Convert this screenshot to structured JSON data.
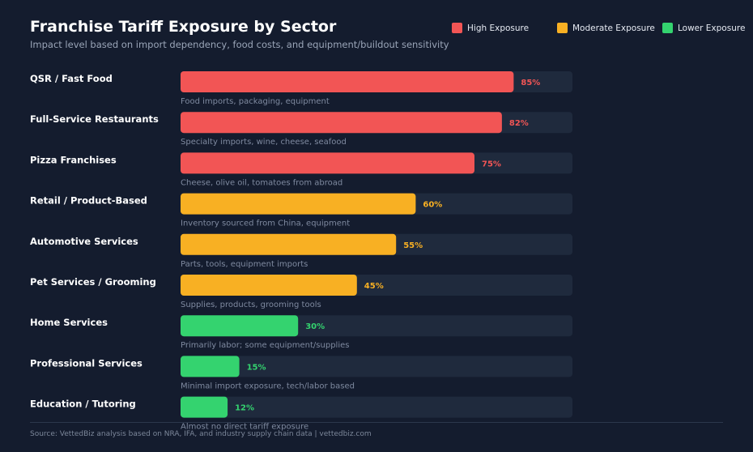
{
  "header": {
    "title": "Franchise Tariff Exposure by Sector",
    "subtitle": "Impact level based on import dependency, food costs, and equipment/buildout sensitivity"
  },
  "legend": [
    {
      "label": "High Exposure",
      "color": "#f25555"
    },
    {
      "label": "Moderate Exposure",
      "color": "#f8b023"
    },
    {
      "label": "Lower Exposure",
      "color": "#34d36f"
    }
  ],
  "colors": {
    "track": "#1f2a3d",
    "high": "#f25555",
    "moderate": "#f8b023",
    "low": "#34d36f"
  },
  "chart_data": {
    "type": "bar",
    "orientation": "horizontal",
    "title": "Franchise Tariff Exposure by Sector",
    "xlim": [
      0,
      100
    ],
    "value_suffix": "%",
    "categories": [
      "QSR / Fast Food",
      "Full-Service Restaurants",
      "Pizza Franchises",
      "Retail / Product-Based",
      "Automotive Services",
      "Pet Services / Grooming",
      "Home Services",
      "Professional Services",
      "Education / Tutoring"
    ],
    "values": [
      85,
      82,
      75,
      60,
      55,
      45,
      30,
      15,
      12
    ],
    "levels": [
      "high",
      "high",
      "high",
      "moderate",
      "moderate",
      "moderate",
      "low",
      "low",
      "low"
    ],
    "notes": [
      "Food imports, packaging, equipment",
      "Specialty imports, wine, cheese, seafood",
      "Cheese, olive oil, tomatoes from abroad",
      "Inventory sourced from China, equipment",
      "Parts, tools, equipment imports",
      "Supplies, products, grooming tools",
      "Primarily labor; some equipment/supplies",
      "Minimal import exposure, tech/labor based",
      "Almost no direct tariff exposure"
    ]
  },
  "footer": {
    "source": "Source: VettedBiz analysis based on NRA, IFA, and industry supply chain data | vettedbiz.com"
  }
}
